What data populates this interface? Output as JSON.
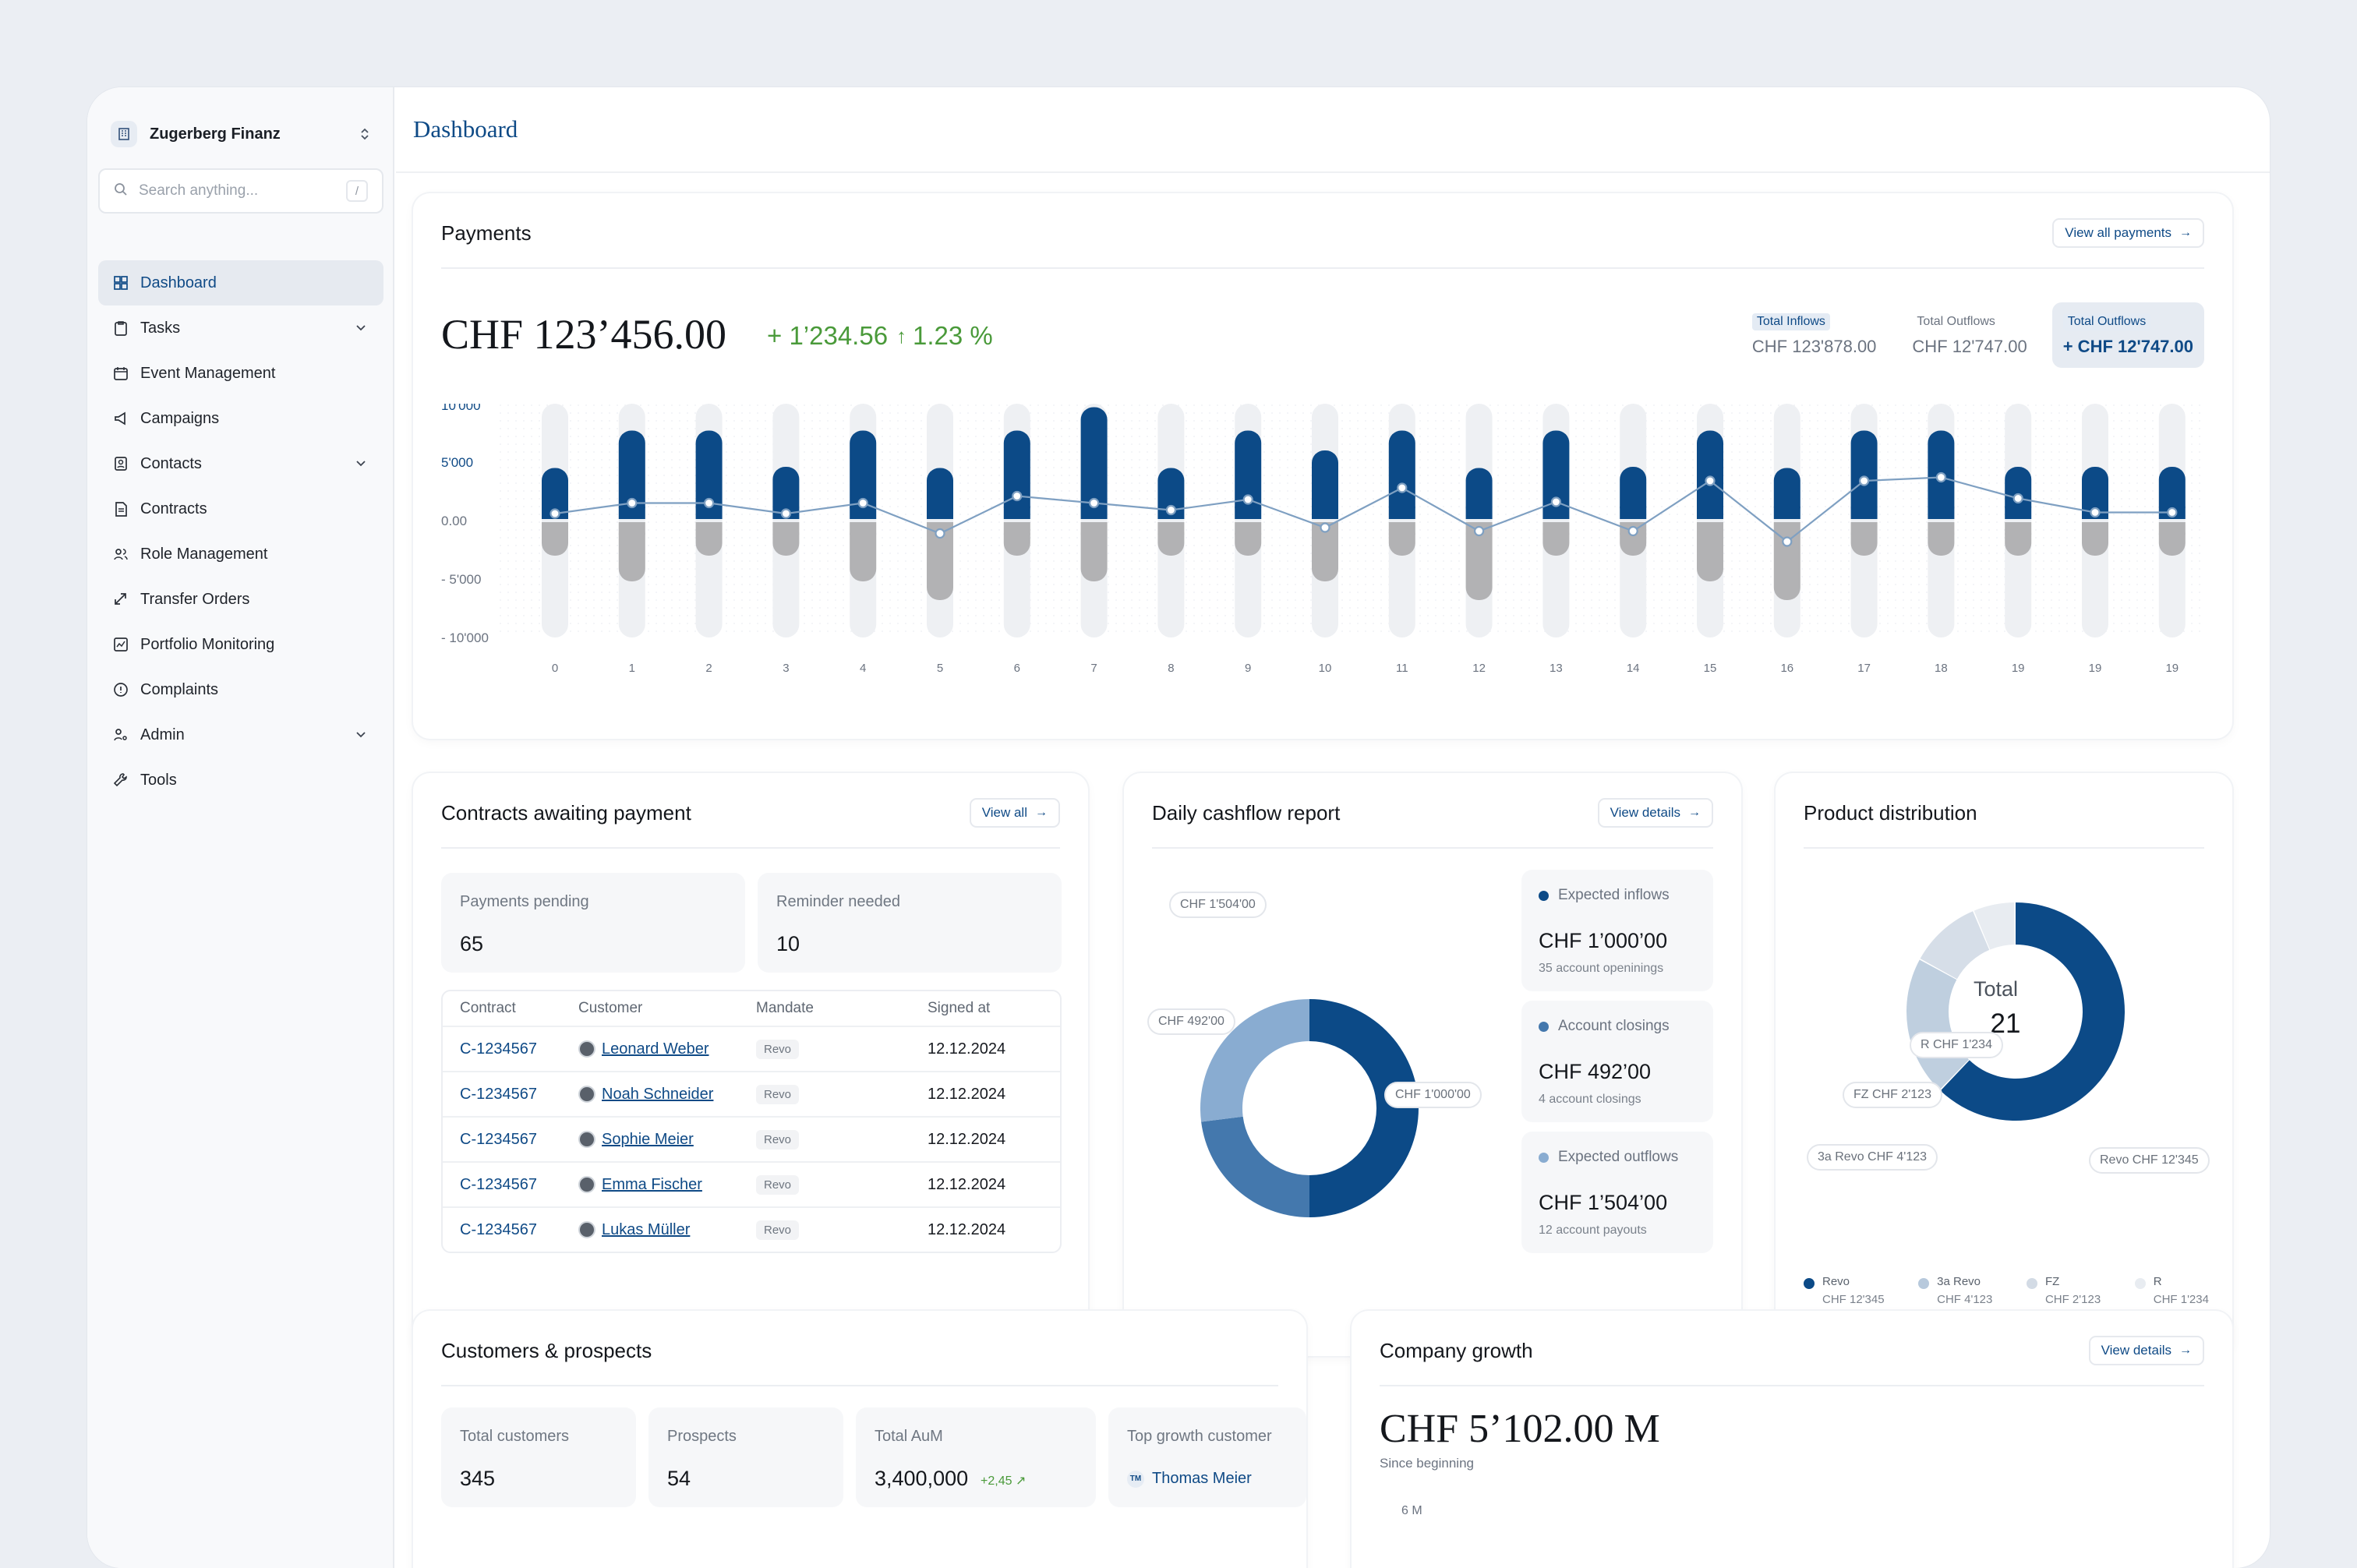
{
  "sidebar": {
    "org_name": "Zugerberg Finanz",
    "search_placeholder": "Search anything...",
    "search_shortcut": "/",
    "items": [
      {
        "label": "Dashboard",
        "icon": "dashboard-icon",
        "active": true,
        "expandable": false
      },
      {
        "label": "Tasks",
        "icon": "clipboard-icon",
        "active": false,
        "expandable": true
      },
      {
        "label": "Event Management",
        "icon": "calendar-icon",
        "active": false,
        "expandable": false
      },
      {
        "label": "Campaigns",
        "icon": "megaphone-icon",
        "active": false,
        "expandable": false
      },
      {
        "label": "Contacts",
        "icon": "contact-book-icon",
        "active": false,
        "expandable": true
      },
      {
        "label": "Contracts",
        "icon": "document-icon",
        "active": false,
        "expandable": false
      },
      {
        "label": "Role Management",
        "icon": "users-icon",
        "active": false,
        "expandable": false
      },
      {
        "label": "Transfer Orders",
        "icon": "transfer-arrows-icon",
        "active": false,
        "expandable": false
      },
      {
        "label": "Portfolio Monitoring",
        "icon": "chart-line-icon",
        "active": false,
        "expandable": false
      },
      {
        "label": "Complaints",
        "icon": "alert-circle-icon",
        "active": false,
        "expandable": false
      },
      {
        "label": "Admin",
        "icon": "user-key-icon",
        "active": false,
        "expandable": true
      },
      {
        "label": "Tools",
        "icon": "wrench-icon",
        "active": false,
        "expandable": false
      }
    ]
  },
  "header": {
    "title": "Dashboard"
  },
  "payments": {
    "title": "Payments",
    "view_all": "View all payments",
    "total": "CHF 123’456.00",
    "change_abs": "+ 1’234.56",
    "change_pct": "1.23 %",
    "summary": [
      {
        "label": "Total Inflows",
        "value": "CHF 123'878.00",
        "highlight_label": true,
        "selected": false
      },
      {
        "label": "Total Outflows",
        "value": "CHF 12'747.00",
        "highlight_label": false,
        "selected": false
      },
      {
        "label": "Total Outflows",
        "value": "+ CHF 12'747.00",
        "highlight_label": true,
        "selected": true
      }
    ]
  },
  "chart_data": {
    "type": "bar",
    "title": "Payments",
    "categories": [
      "0",
      "1",
      "2",
      "3",
      "4",
      "5",
      "6",
      "7",
      "8",
      "9",
      "10",
      "11",
      "12",
      "13",
      "14",
      "15",
      "16",
      "17",
      "18",
      "19",
      "19",
      "19"
    ],
    "ylim": [
      -10000,
      10000
    ],
    "yticks": [
      "10'000",
      "5'000",
      "0.00",
      "- 5'000",
      "- 10'000"
    ],
    "series": [
      {
        "values": [
          4500,
          7700,
          7700,
          4600,
          7700,
          4500,
          7700,
          9700,
          4500,
          7700,
          6000,
          7700,
          4500,
          7700,
          4600,
          7700,
          4500,
          7700,
          7700,
          4600,
          4600,
          4600
        ]
      },
      {
        "values": [
          -3000,
          -5200,
          -3000,
          -3000,
          -5200,
          -6800,
          -3000,
          -5200,
          -3000,
          -3000,
          -5200,
          -3000,
          -6800,
          -3000,
          -3000,
          -5200,
          -6800,
          -3000,
          -3000,
          -3000,
          -3000,
          -3000
        ]
      },
      {
        "values": [
          600,
          1500,
          1500,
          600,
          1500,
          -1100,
          2100,
          1500,
          900,
          1800,
          -600,
          2800,
          -900,
          1600,
          -900,
          3400,
          -1800,
          3400,
          3700,
          1900,
          700,
          700
        ]
      }
    ],
    "colors": {
      "inflow": "#0c4a87",
      "outflow": "#b2b2b4",
      "net_line": "#7fa0c2",
      "track": "#eef0f3"
    }
  },
  "contracts": {
    "title": "Contracts awaiting payment",
    "view_all": "View all",
    "stats": [
      {
        "label": "Payments pending",
        "value": "65"
      },
      {
        "label": "Reminder needed",
        "value": "10"
      }
    ],
    "columns": [
      "Contract",
      "Customer",
      "Mandate",
      "Signed at"
    ],
    "rows": [
      {
        "contract": "C-1234567",
        "customer": "Leonard Weber",
        "mandate": "Revo",
        "signed": "12.12.2024"
      },
      {
        "contract": "C-1234567",
        "customer": "Noah Schneider",
        "mandate": "Revo",
        "signed": "12.12.2024"
      },
      {
        "contract": "C-1234567",
        "customer": "Sophie Meier",
        "mandate": "Revo",
        "signed": "12.12.2024"
      },
      {
        "contract": "C-1234567",
        "customer": "Emma Fischer",
        "mandate": "Revo",
        "signed": "12.12.2024"
      },
      {
        "contract": "C-1234567",
        "customer": "Lukas Müller",
        "mandate": "Revo",
        "signed": "12.12.2024"
      }
    ]
  },
  "cashflow": {
    "title": "Daily cashflow report",
    "view_details": "View details",
    "donut": [
      {
        "label": "CHF 1'000'00",
        "value": 50,
        "color": "#0c4a87"
      },
      {
        "label": "CHF 492'00",
        "value": 23,
        "color": "#4478ad"
      },
      {
        "label": "CHF 1'504'00",
        "value": 27,
        "color": "#89acd1"
      }
    ],
    "boxes": [
      {
        "label": "Expected inflows",
        "value": "CHF 1’000’00",
        "sub": "35 account openinings",
        "color": "#0c4a87"
      },
      {
        "label": "Account closings",
        "value": "CHF 492’00",
        "sub": "4 account closings",
        "color": "#4478ad"
      },
      {
        "label": "Expected outflows",
        "value": "CHF 1’504’00",
        "sub": "12 account payouts",
        "color": "#89acd1"
      }
    ]
  },
  "products": {
    "title": "Product distribution",
    "center_label": "Total",
    "center_value": "21",
    "segments": [
      {
        "label": "Revo CHF 12'345",
        "value": 12345,
        "color": "#0c4a87"
      },
      {
        "label": "3a Revo CHF 4'123",
        "value": 4123,
        "color": "#bfcfdf"
      },
      {
        "label": "FZ CHF 2'123",
        "value": 2123,
        "color": "#d6dee8"
      },
      {
        "label": "R CHF 1'234",
        "value": 1234,
        "color": "#e8ecf1"
      }
    ],
    "legend": [
      {
        "name": "Revo",
        "amount": "CHF 12'345",
        "color": "#0c4a87"
      },
      {
        "name": "3a Revo",
        "amount": "CHF 4'123",
        "color": "#b7c9dc"
      },
      {
        "name": "FZ",
        "amount": "CHF 2'123",
        "color": "#d3dbe5"
      },
      {
        "name": "R",
        "amount": "CHF 1'234",
        "color": "#e8ecf1"
      }
    ]
  },
  "customers": {
    "title": "Customers & prospects",
    "stats": [
      {
        "label": "Total customers",
        "value": "345"
      },
      {
        "label": "Prospects",
        "value": "54"
      },
      {
        "label": "Total AuM",
        "value": "3,400,000",
        "delta": "+2,45"
      },
      {
        "label": "Top growth customer",
        "initials": "TM",
        "name": "Thomas Meier"
      }
    ]
  },
  "growth": {
    "title": "Company growth",
    "view_details": "View details",
    "value": "CHF 5’102.00 M",
    "since": "Since beginning",
    "axis_top": "6 M"
  }
}
